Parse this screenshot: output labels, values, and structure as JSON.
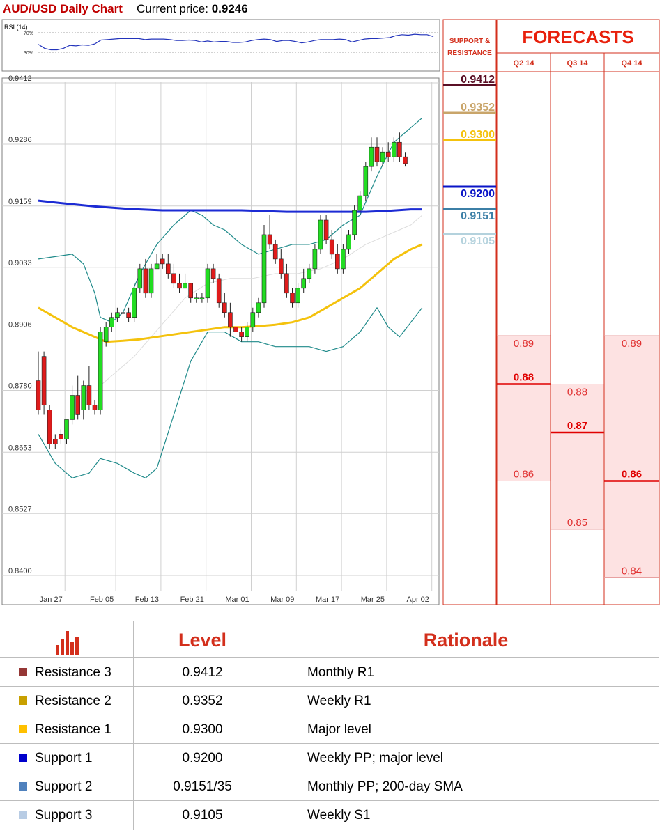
{
  "header": {
    "title": "AUD/USD Daily Chart",
    "price_label": "Current price: ",
    "price_value": "0.9246"
  },
  "rsi": {
    "label": "RSI (14)",
    "levels": [
      "70%",
      "30%"
    ],
    "level_values": [
      70,
      30
    ],
    "values": [
      46,
      38,
      35,
      35,
      38,
      44,
      43,
      45,
      44,
      47,
      55,
      56,
      57,
      58,
      58,
      58,
      58,
      56,
      57,
      57,
      57,
      56,
      54,
      54,
      55,
      54,
      51,
      53,
      51,
      52,
      52,
      50,
      50,
      51,
      54,
      56,
      57,
      56,
      52,
      54,
      54,
      52,
      49,
      51,
      54,
      56,
      56,
      56,
      57,
      56,
      51,
      54,
      57,
      58,
      58,
      59,
      60,
      64,
      66,
      65,
      67,
      66,
      66,
      62
    ]
  },
  "chart_data": {
    "type": "candlestick",
    "y_ticks": [
      "0.9412",
      "0.9286",
      "0.9159",
      "0.9033",
      "0.8906",
      "0.8780",
      "0.8653",
      "0.8527",
      "0.8400"
    ],
    "ylim": [
      0.84,
      0.9412
    ],
    "x_ticks": [
      "Jan 27",
      "Feb 05",
      "Feb 13",
      "Feb 21",
      "Mar 01",
      "Mar 09",
      "Mar 17",
      "Mar 25",
      "Apr 02"
    ],
    "x_tick_index": [
      2,
      11,
      19,
      27,
      35,
      43,
      51,
      59,
      67
    ],
    "n_slots": 71,
    "candles": [
      [
        0.88,
        0.874,
        0.886,
        0.873
      ],
      [
        0.885,
        0.875,
        0.886,
        0.873
      ],
      [
        0.874,
        0.867,
        0.875,
        0.866
      ],
      [
        0.868,
        0.867,
        0.869,
        0.866
      ],
      [
        0.869,
        0.868,
        0.87,
        0.867
      ],
      [
        0.868,
        0.872,
        0.872,
        0.867
      ],
      [
        0.872,
        0.877,
        0.879,
        0.871
      ],
      [
        0.877,
        0.873,
        0.881,
        0.872
      ],
      [
        0.874,
        0.879,
        0.88,
        0.872
      ],
      [
        0.879,
        0.875,
        0.883,
        0.874
      ],
      [
        0.875,
        0.874,
        0.876,
        0.873
      ],
      [
        0.874,
        0.89,
        0.891,
        0.873
      ],
      [
        0.888,
        0.891,
        0.892,
        0.887
      ],
      [
        0.891,
        0.893,
        0.894,
        0.89
      ],
      [
        0.893,
        0.894,
        0.895,
        0.892
      ],
      [
        0.894,
        0.894,
        0.896,
        0.893
      ],
      [
        0.894,
        0.893,
        0.895,
        0.892
      ],
      [
        0.893,
        0.899,
        0.9,
        0.892
      ],
      [
        0.899,
        0.903,
        0.904,
        0.898
      ],
      [
        0.903,
        0.898,
        0.905,
        0.897
      ],
      [
        0.898,
        0.903,
        0.904,
        0.897
      ],
      [
        0.903,
        0.904,
        0.906,
        0.903
      ],
      [
        0.905,
        0.904,
        0.906,
        0.903
      ],
      [
        0.904,
        0.902,
        0.906,
        0.901
      ],
      [
        0.902,
        0.9,
        0.904,
        0.899
      ],
      [
        0.9,
        0.899,
        0.902,
        0.898
      ],
      [
        0.899,
        0.9,
        0.902,
        0.899
      ],
      [
        0.9,
        0.897,
        0.9,
        0.896
      ],
      [
        0.897,
        0.897,
        0.898,
        0.896
      ],
      [
        0.897,
        0.897,
        0.898,
        0.896
      ],
      [
        0.897,
        0.903,
        0.904,
        0.896
      ],
      [
        0.903,
        0.901,
        0.904,
        0.9
      ],
      [
        0.901,
        0.896,
        0.902,
        0.895
      ],
      [
        0.896,
        0.894,
        0.898,
        0.893
      ],
      [
        0.894,
        0.891,
        0.896,
        0.889
      ],
      [
        0.891,
        0.89,
        0.892,
        0.889
      ],
      [
        0.89,
        0.889,
        0.891,
        0.888
      ],
      [
        0.889,
        0.891,
        0.892,
        0.888
      ],
      [
        0.891,
        0.894,
        0.895,
        0.89
      ],
      [
        0.894,
        0.896,
        0.897,
        0.893
      ],
      [
        0.896,
        0.91,
        0.912,
        0.895
      ],
      [
        0.91,
        0.908,
        0.914,
        0.907
      ],
      [
        0.908,
        0.905,
        0.909,
        0.904
      ],
      [
        0.905,
        0.902,
        0.907,
        0.901
      ],
      [
        0.902,
        0.898,
        0.904,
        0.897
      ],
      [
        0.898,
        0.896,
        0.899,
        0.895
      ],
      [
        0.896,
        0.899,
        0.9,
        0.895
      ],
      [
        0.899,
        0.901,
        0.903,
        0.898
      ],
      [
        0.901,
        0.903,
        0.904,
        0.9
      ],
      [
        0.903,
        0.907,
        0.908,
        0.902
      ],
      [
        0.907,
        0.913,
        0.914,
        0.906
      ],
      [
        0.913,
        0.909,
        0.914,
        0.908
      ],
      [
        0.909,
        0.906,
        0.911,
        0.905
      ],
      [
        0.906,
        0.903,
        0.908,
        0.902
      ],
      [
        0.903,
        0.907,
        0.908,
        0.902
      ],
      [
        0.907,
        0.91,
        0.911,
        0.906
      ],
      [
        0.91,
        0.915,
        0.916,
        0.909
      ],
      [
        0.915,
        0.918,
        0.919,
        0.914
      ],
      [
        0.918,
        0.924,
        0.925,
        0.917
      ],
      [
        0.924,
        0.928,
        0.93,
        0.923
      ],
      [
        0.928,
        0.925,
        0.93,
        0.924
      ],
      [
        0.925,
        0.927,
        0.928,
        0.924
      ],
      [
        0.927,
        0.926,
        0.929,
        0.925
      ],
      [
        0.926,
        0.929,
        0.93,
        0.925
      ],
      [
        0.929,
        0.926,
        0.931,
        0.925
      ],
      [
        0.926,
        0.9246,
        0.927,
        0.924
      ]
    ],
    "bollinger_upper": [
      [
        0,
        0.905
      ],
      [
        6,
        0.906
      ],
      [
        8,
        0.904
      ],
      [
        10,
        0.898
      ],
      [
        11,
        0.893
      ],
      [
        13,
        0.892
      ],
      [
        15,
        0.894
      ],
      [
        18,
        0.902
      ],
      [
        21,
        0.908
      ],
      [
        24,
        0.912
      ],
      [
        27,
        0.915
      ],
      [
        29,
        0.914
      ],
      [
        31,
        0.912
      ],
      [
        33,
        0.911
      ],
      [
        36,
        0.908
      ],
      [
        39,
        0.906
      ],
      [
        42,
        0.907
      ],
      [
        45,
        0.908
      ],
      [
        48,
        0.908
      ],
      [
        51,
        0.909
      ],
      [
        54,
        0.912
      ],
      [
        57,
        0.914
      ],
      [
        60,
        0.922
      ],
      [
        63,
        0.929
      ],
      [
        66,
        0.932
      ],
      [
        68,
        0.934
      ]
    ],
    "bollinger_lower": [
      [
        0,
        0.869
      ],
      [
        3,
        0.863
      ],
      [
        6,
        0.86
      ],
      [
        9,
        0.861
      ],
      [
        11,
        0.864
      ],
      [
        14,
        0.863
      ],
      [
        17,
        0.861
      ],
      [
        19,
        0.86
      ],
      [
        21,
        0.862
      ],
      [
        24,
        0.873
      ],
      [
        27,
        0.884
      ],
      [
        30,
        0.89
      ],
      [
        33,
        0.89
      ],
      [
        36,
        0.888
      ],
      [
        39,
        0.888
      ],
      [
        42,
        0.887
      ],
      [
        45,
        0.887
      ],
      [
        48,
        0.887
      ],
      [
        51,
        0.886
      ],
      [
        54,
        0.887
      ],
      [
        57,
        0.89
      ],
      [
        60,
        0.895
      ],
      [
        62,
        0.891
      ],
      [
        64,
        0.889
      ],
      [
        66,
        0.892
      ],
      [
        68,
        0.895
      ]
    ],
    "bollinger_mid": [
      [
        11,
        0.879
      ],
      [
        14,
        0.882
      ],
      [
        17,
        0.885
      ],
      [
        20,
        0.889
      ],
      [
        23,
        0.893
      ],
      [
        26,
        0.897
      ],
      [
        30,
        0.9
      ],
      [
        34,
        0.901
      ],
      [
        38,
        0.901
      ],
      [
        42,
        0.902
      ],
      [
        46,
        0.902
      ],
      [
        50,
        0.903
      ],
      [
        54,
        0.905
      ],
      [
        58,
        0.908
      ],
      [
        62,
        0.91
      ],
      [
        66,
        0.912
      ],
      [
        68,
        0.914
      ]
    ],
    "sma_blue": [
      [
        0,
        0.917
      ],
      [
        4,
        0.9165
      ],
      [
        10,
        0.9158
      ],
      [
        16,
        0.9153
      ],
      [
        22,
        0.915
      ],
      [
        28,
        0.915
      ],
      [
        36,
        0.915
      ],
      [
        44,
        0.9147
      ],
      [
        52,
        0.9147
      ],
      [
        58,
        0.9147
      ],
      [
        62,
        0.9149
      ],
      [
        66,
        0.9152
      ],
      [
        68,
        0.9152
      ]
    ],
    "sma_yellow": [
      [
        0,
        0.895
      ],
      [
        3,
        0.893
      ],
      [
        6,
        0.891
      ],
      [
        9,
        0.8895
      ],
      [
        12,
        0.888
      ],
      [
        15,
        0.8882
      ],
      [
        18,
        0.8885
      ],
      [
        21,
        0.889
      ],
      [
        24,
        0.8895
      ],
      [
        27,
        0.89
      ],
      [
        30,
        0.8905
      ],
      [
        33,
        0.891
      ],
      [
        36,
        0.891
      ],
      [
        39,
        0.8912
      ],
      [
        42,
        0.8915
      ],
      [
        45,
        0.892
      ],
      [
        48,
        0.893
      ],
      [
        51,
        0.895
      ],
      [
        54,
        0.897
      ],
      [
        57,
        0.899
      ],
      [
        60,
        0.902
      ],
      [
        63,
        0.905
      ],
      [
        66,
        0.907
      ],
      [
        68,
        0.908
      ]
    ]
  },
  "sr": {
    "header": "SUPPORT & RESISTANCE",
    "levels": [
      {
        "label": "0.9412",
        "value": 0.9412,
        "color": "#5a0f25",
        "bg": "#ffffff"
      },
      {
        "label": "0.9352",
        "value": 0.9352,
        "color": "#c9a56a",
        "bg": "#ffffff"
      },
      {
        "label": "0.9300",
        "value": 0.93,
        "color": "#f4c20d",
        "bg": "#ffffff"
      },
      {
        "label": "0.9200",
        "value": 0.92,
        "color": "#0a14c7",
        "bg": "#ffffff"
      },
      {
        "label": "0.9151",
        "value": 0.9151,
        "color": "#3c7fa6",
        "bg": "#ffffff"
      },
      {
        "label": "0.9105",
        "value": 0.9105,
        "color": "#b4d2dd",
        "bg": "#ffffff"
      }
    ]
  },
  "forecasts": {
    "title": "FORECASTS",
    "columns": [
      {
        "label": "Q2 14",
        "high": "0.89",
        "mid": "0.88",
        "low": "0.86",
        "high_v": 0.89,
        "mid_v": 0.88,
        "low_v": 0.86
      },
      {
        "label": "Q3 14",
        "high": "0.88",
        "mid": "0.87",
        "low": "0.85",
        "high_v": 0.88,
        "mid_v": 0.87,
        "low_v": 0.85
      },
      {
        "label": "Q4 14",
        "high": "0.89",
        "mid": "0.86",
        "low": "0.84",
        "high_v": 0.89,
        "mid_v": 0.86,
        "low_v": 0.84
      }
    ]
  },
  "table": {
    "level_header": "Level",
    "rationale_header": "Rationale",
    "rows": [
      {
        "name": "Resistance 3",
        "level": "0.9412",
        "rationale": "Monthly R1",
        "color": "#953735"
      },
      {
        "name": "Resistance 2",
        "level": "0.9352",
        "rationale": "Weekly R1",
        "color": "#c8a000"
      },
      {
        "name": "Resistance 1",
        "level": "0.9300",
        "rationale": "Major level",
        "color": "#ffc000"
      },
      {
        "name": "Support 1",
        "level": "0.9200",
        "rationale": "Weekly PP; major level",
        "color": "#0000cc"
      },
      {
        "name": "Support 2",
        "level": "0.9151/35",
        "rationale": "Monthly PP; 200-day SMA",
        "color": "#4f81bd"
      },
      {
        "name": "Support 3",
        "level": "0.9105",
        "rationale": "Weekly S1",
        "color": "#b8cce4"
      }
    ]
  }
}
